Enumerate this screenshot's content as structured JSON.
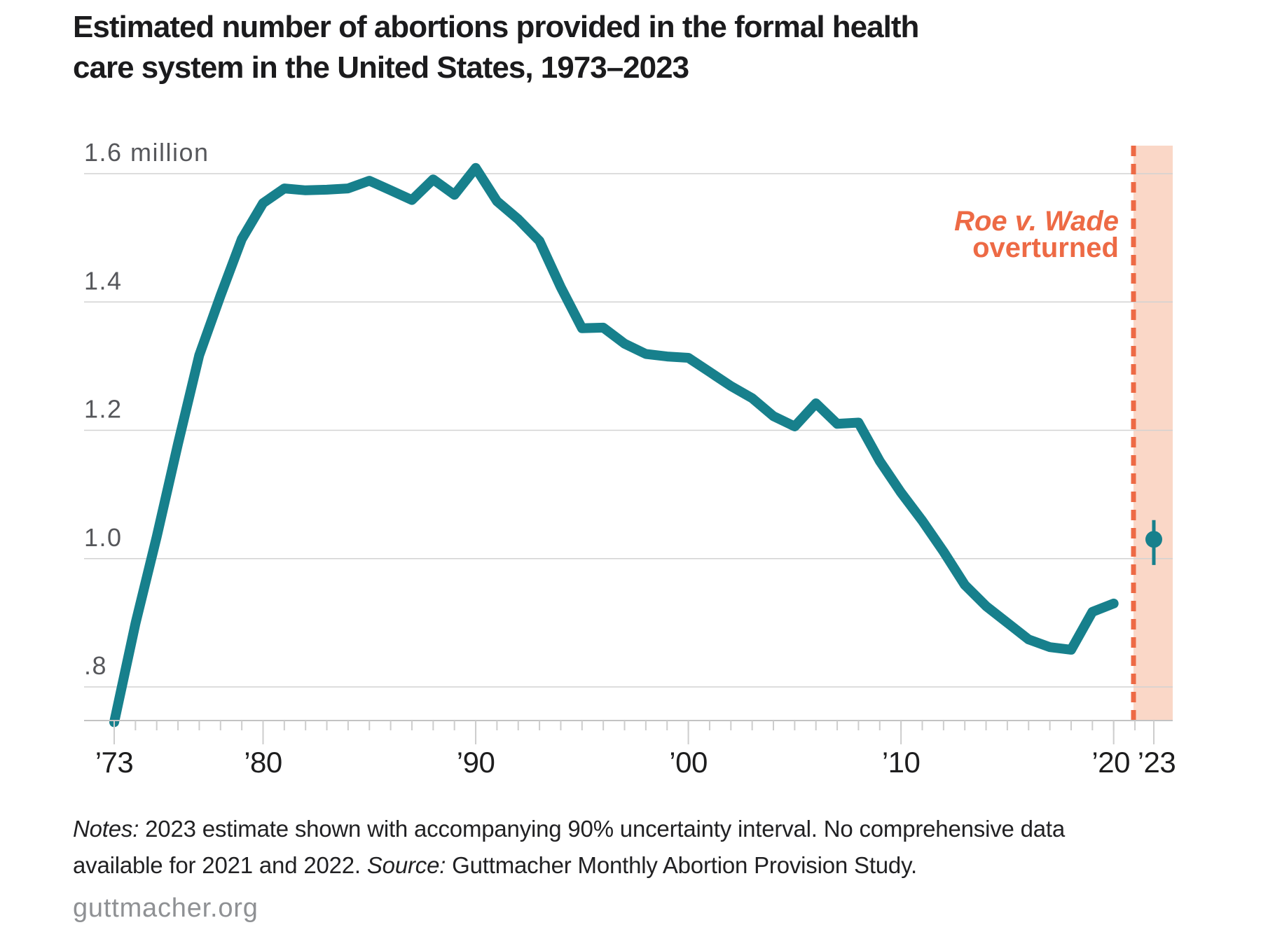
{
  "header": {
    "title_line1": "Estimated number of abortions provided in the formal health",
    "title_line2": "care system in the United States, 1973–2023"
  },
  "chart_data": {
    "type": "line",
    "title": "Estimated number of abortions provided in the formal health care system in the United States, 1973–2023",
    "y_unit": "million",
    "ylim": [
      0.75,
      1.69
    ],
    "xlim": [
      1973,
      2023
    ],
    "grid": true,
    "x": [
      1973,
      1974,
      1975,
      1976,
      1977,
      1978,
      1979,
      1980,
      1981,
      1982,
      1983,
      1984,
      1985,
      1986,
      1987,
      1988,
      1989,
      1990,
      1991,
      1992,
      1993,
      1994,
      1995,
      1996,
      1997,
      1998,
      1999,
      2000,
      2001,
      2002,
      2003,
      2004,
      2005,
      2006,
      2007,
      2008,
      2009,
      2010,
      2011,
      2012,
      2013,
      2014,
      2015,
      2016,
      2017,
      2018,
      2019,
      2020
    ],
    "series": [
      {
        "name": "abortions_millions",
        "values": [
          0.745,
          0.899,
          1.034,
          1.179,
          1.317,
          1.41,
          1.498,
          1.554,
          1.577,
          1.574,
          1.575,
          1.577,
          1.589,
          1.574,
          1.559,
          1.591,
          1.567,
          1.609,
          1.557,
          1.529,
          1.495,
          1.423,
          1.359,
          1.36,
          1.335,
          1.319,
          1.315,
          1.313,
          1.291,
          1.269,
          1.25,
          1.222,
          1.206,
          1.242,
          1.21,
          1.212,
          1.152,
          1.103,
          1.059,
          1.011,
          0.959,
          0.926,
          0.9,
          0.874,
          0.862,
          0.858,
          0.917,
          0.93
        ]
      }
    ],
    "estimate_2023": {
      "year": 2023,
      "value": 1.03,
      "interval_low": 0.99,
      "interval_high": 1.06
    },
    "annotation": {
      "line1": "Roe v. Wade",
      "line2": "overturned"
    },
    "y_ticks": [
      {
        "value": 1.6,
        "label": "1.6 million"
      },
      {
        "value": 1.4,
        "label": "1.4"
      },
      {
        "value": 1.2,
        "label": "1.2"
      },
      {
        "value": 1.0,
        "label": "1.0"
      },
      {
        "value": 0.8,
        "label": ".8"
      }
    ],
    "x_ticks": [
      {
        "year": 1973,
        "label": "’73"
      },
      {
        "year": 1980,
        "label": "’80"
      },
      {
        "year": 1990,
        "label": "’90"
      },
      {
        "year": 2000,
        "label": "’00"
      },
      {
        "year": 2010,
        "label": "’10"
      },
      {
        "year": 2020,
        "label": "’20"
      },
      {
        "year": 2023,
        "label": "’23"
      }
    ],
    "colors": {
      "line": "#17808c",
      "annotation": "#ed6a45",
      "band": "#fad7c7",
      "grid": "#d2d2d2",
      "axis": "#c3c3c3",
      "tick": "#cdcdcd",
      "x_label": "#1d1d1e",
      "y_label": "#56575b"
    }
  },
  "notes": {
    "notes_label": "Notes:",
    "line1_text": "2023 estimate shown with accompanying 90% uncertainty interval. No comprehensive data",
    "line2_prefix": "available for 2021 and 2022.",
    "source_label": "Source:",
    "source_text": "Guttmacher Monthly Abortion Provision Study."
  },
  "footer": {
    "site": "guttmacher.org"
  }
}
